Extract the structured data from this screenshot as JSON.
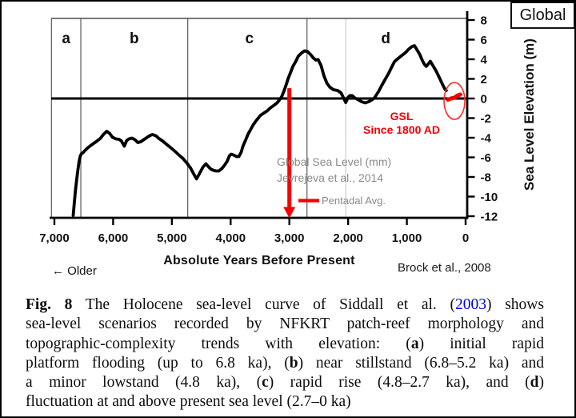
{
  "header": {
    "corner_label": "Global"
  },
  "chart_data": {
    "type": "line",
    "title": "Holocene sea-level curve (Siddall et al. 2003)",
    "xlabel": "Absolute Years Before Present",
    "ylabel": "Sea Level Elevation (m)",
    "xlim_ka": [
      7.05,
      0
    ],
    "ylim_m": [
      -12,
      8
    ],
    "grid": "section dividers only",
    "x_ticks": [
      {
        "ka": 7,
        "label": "7,000"
      },
      {
        "ka": 6,
        "label": "6,000"
      },
      {
        "ka": 5,
        "label": "5,000"
      },
      {
        "ka": 4,
        "label": "4,000"
      },
      {
        "ka": 3,
        "label": "3,000"
      },
      {
        "ka": 2,
        "label": "2,000"
      },
      {
        "ka": 1,
        "label": "1,000"
      },
      {
        "ka": 0,
        "label": "0"
      }
    ],
    "y_ticks": [
      {
        "value": 8,
        "label": "8"
      },
      {
        "value": 6,
        "label": "6"
      },
      {
        "value": 4,
        "label": "4"
      },
      {
        "value": 2,
        "label": "2"
      },
      {
        "value": 0,
        "label": "0"
      },
      {
        "value": -2,
        "label": "-2"
      },
      {
        "value": -4,
        "label": "-4"
      },
      {
        "value": -6,
        "label": "-6"
      },
      {
        "value": -8,
        "label": "-8"
      },
      {
        "value": -10,
        "label": "-10"
      },
      {
        "value": -12,
        "label": "-12"
      }
    ],
    "sections": [
      {
        "label": "a",
        "center_ka": 6.8
      },
      {
        "label": "b",
        "center_ka": 5.64
      },
      {
        "label": "c",
        "center_ka": 3.68
      },
      {
        "label": "d",
        "center_ka": 1.36
      }
    ],
    "section_dividers_ka": [
      7.05,
      6.55,
      4.73,
      2.7
    ],
    "light_divider_ka": 2.04,
    "red_arrow": {
      "x_ka": 3.0,
      "top_m": 1.05,
      "tip_m": -12.2
    },
    "gsl_highlight": {
      "center_ka": 0.19,
      "center_m": -0.25
    },
    "series": [
      {
        "name": "Holocene sea level, Siddall et al. 2003",
        "unit": "m",
        "points_ka_m": [
          [
            6.68,
            -11.92
          ],
          [
            6.66,
            -10.53
          ],
          [
            6.64,
            -9.31
          ],
          [
            6.62,
            -8.24
          ],
          [
            6.6,
            -7.27
          ],
          [
            6.58,
            -6.45
          ],
          [
            6.56,
            -5.88
          ],
          [
            6.54,
            -5.63
          ],
          [
            6.51,
            -5.51
          ],
          [
            6.48,
            -5.31
          ],
          [
            6.43,
            -5.02
          ],
          [
            6.36,
            -4.69
          ],
          [
            6.29,
            -4.41
          ],
          [
            6.22,
            -4.08
          ],
          [
            6.17,
            -3.71
          ],
          [
            6.11,
            -3.35
          ],
          [
            6.06,
            -3.55
          ],
          [
            6.01,
            -3.96
          ],
          [
            5.95,
            -4.12
          ],
          [
            5.9,
            -4.16
          ],
          [
            5.86,
            -4.33
          ],
          [
            5.81,
            -4.86
          ],
          [
            5.77,
            -4.29
          ],
          [
            5.73,
            -4.12
          ],
          [
            5.68,
            -4.04
          ],
          [
            5.63,
            -4.2
          ],
          [
            5.58,
            -4.49
          ],
          [
            5.53,
            -4.41
          ],
          [
            5.47,
            -4.16
          ],
          [
            5.42,
            -3.96
          ],
          [
            5.37,
            -3.76
          ],
          [
            5.33,
            -3.67
          ],
          [
            5.27,
            -3.8
          ],
          [
            5.22,
            -4.08
          ],
          [
            5.15,
            -4.37
          ],
          [
            5.08,
            -4.73
          ],
          [
            5.01,
            -5.06
          ],
          [
            4.94,
            -5.43
          ],
          [
            4.88,
            -5.76
          ],
          [
            4.81,
            -6.12
          ],
          [
            4.74,
            -6.61
          ],
          [
            4.68,
            -7.1
          ],
          [
            4.63,
            -7.67
          ],
          [
            4.58,
            -8.2
          ],
          [
            4.54,
            -7.76
          ],
          [
            4.47,
            -6.98
          ],
          [
            4.42,
            -6.65
          ],
          [
            4.38,
            -6.94
          ],
          [
            4.34,
            -7.18
          ],
          [
            4.3,
            -7.31
          ],
          [
            4.25,
            -7.39
          ],
          [
            4.2,
            -7.39
          ],
          [
            4.15,
            -7.14
          ],
          [
            4.11,
            -6.86
          ],
          [
            4.06,
            -6.41
          ],
          [
            4.02,
            -5.84
          ],
          [
            3.99,
            -5.67
          ],
          [
            3.95,
            -5.76
          ],
          [
            3.9,
            -5.92
          ],
          [
            3.86,
            -5.92
          ],
          [
            3.82,
            -5.47
          ],
          [
            3.79,
            -4.86
          ],
          [
            3.74,
            -4.16
          ],
          [
            3.7,
            -3.59
          ],
          [
            3.66,
            -3.18
          ],
          [
            3.62,
            -2.73
          ],
          [
            3.57,
            -2.29
          ],
          [
            3.53,
            -2.0
          ],
          [
            3.49,
            -1.71
          ],
          [
            3.43,
            -1.47
          ],
          [
            3.38,
            -1.27
          ],
          [
            3.32,
            -0.94
          ],
          [
            3.27,
            -0.73
          ],
          [
            3.21,
            -0.45
          ],
          [
            3.17,
            -0.16
          ],
          [
            3.13,
            0.2
          ],
          [
            3.09,
            0.78
          ],
          [
            3.05,
            1.47
          ],
          [
            3.02,
            2.04
          ],
          [
            2.98,
            2.65
          ],
          [
            2.94,
            3.27
          ],
          [
            2.89,
            3.8
          ],
          [
            2.85,
            4.29
          ],
          [
            2.79,
            4.65
          ],
          [
            2.74,
            4.86
          ],
          [
            2.69,
            4.78
          ],
          [
            2.64,
            4.49
          ],
          [
            2.59,
            4.12
          ],
          [
            2.55,
            3.92
          ],
          [
            2.51,
            3.97
          ],
          [
            2.46,
            3.35
          ],
          [
            2.41,
            2.29
          ],
          [
            2.36,
            1.55
          ],
          [
            2.31,
            1.14
          ],
          [
            2.25,
            0.9
          ],
          [
            2.18,
            0.82
          ],
          [
            2.12,
            0.57
          ],
          [
            2.07,
            -0.04
          ],
          [
            2.04,
            -0.41
          ],
          [
            2.0,
            0.12
          ],
          [
            1.97,
            0.29
          ],
          [
            1.93,
            0.29
          ],
          [
            1.89,
            0.08
          ],
          [
            1.83,
            -0.12
          ],
          [
            1.77,
            -0.33
          ],
          [
            1.71,
            -0.45
          ],
          [
            1.65,
            -0.33
          ],
          [
            1.59,
            -0.12
          ],
          [
            1.55,
            0.08
          ],
          [
            1.48,
            0.73
          ],
          [
            1.43,
            1.31
          ],
          [
            1.38,
            1.84
          ],
          [
            1.31,
            2.57
          ],
          [
            1.26,
            3.18
          ],
          [
            1.21,
            3.76
          ],
          [
            1.15,
            4.08
          ],
          [
            1.09,
            4.37
          ],
          [
            1.02,
            4.69
          ],
          [
            0.97,
            5.02
          ],
          [
            0.91,
            5.31
          ],
          [
            0.87,
            5.39
          ],
          [
            0.83,
            4.98
          ],
          [
            0.78,
            4.49
          ],
          [
            0.74,
            3.92
          ],
          [
            0.7,
            3.47
          ],
          [
            0.67,
            3.27
          ],
          [
            0.63,
            3.55
          ],
          [
            0.6,
            3.8
          ],
          [
            0.56,
            3.39
          ],
          [
            0.5,
            2.78
          ],
          [
            0.44,
            2.04
          ],
          [
            0.39,
            1.39
          ],
          [
            0.35,
            0.94
          ],
          [
            0.33,
            0.82
          ]
        ]
      },
      {
        "name": "GSL since 1800 AD (pentadal avg.)",
        "unit": "m",
        "points_ka_m": [
          [
            0.3,
            -0.12
          ],
          [
            0.25,
            0.0
          ],
          [
            0.19,
            0.08
          ],
          [
            0.14,
            0.29
          ],
          [
            0.09,
            0.41
          ]
        ]
      }
    ]
  },
  "annotations": {
    "gsl_line1": "GSL",
    "gsl_line2": "Since 1800 AD",
    "source_line1": "Global Sea Level (mm)",
    "source_line2": "Jevrejeva et al., 2014",
    "legend_pentadal": "Pentadal Avg.",
    "older_label": "← Older",
    "credit": "Brock et al., 2008"
  },
  "caption": {
    "l1_bold": "Fig. 8",
    "l1_rest1": " The Holocene sea-level curve of Siddall et al. (",
    "l1_link": "2003",
    "l1_rest2": ") shows",
    "l2": "sea-level scenarios recorded by NFKRT patch-reef morphology and",
    "l3_a": "topographic-complexity trends with elevation: (",
    "l3_bold": "a",
    "l3_b": ") initial rapid",
    "l4_a": "platform flooding (up to 6.8 ka), (",
    "l4_bold": "b",
    "l4_b": ") near stillstand (6.8–5.2 ka) and",
    "l5_a": "a minor lowstand (4.8 ka), (",
    "l5_bold": "c",
    "l5_b": ") rapid rise (4.8–2.7 ka), and (",
    "l5_bold2": "d",
    "l5_c": ")",
    "l6": "fluctuation at and above present sea level (2.7–0 ka)"
  }
}
